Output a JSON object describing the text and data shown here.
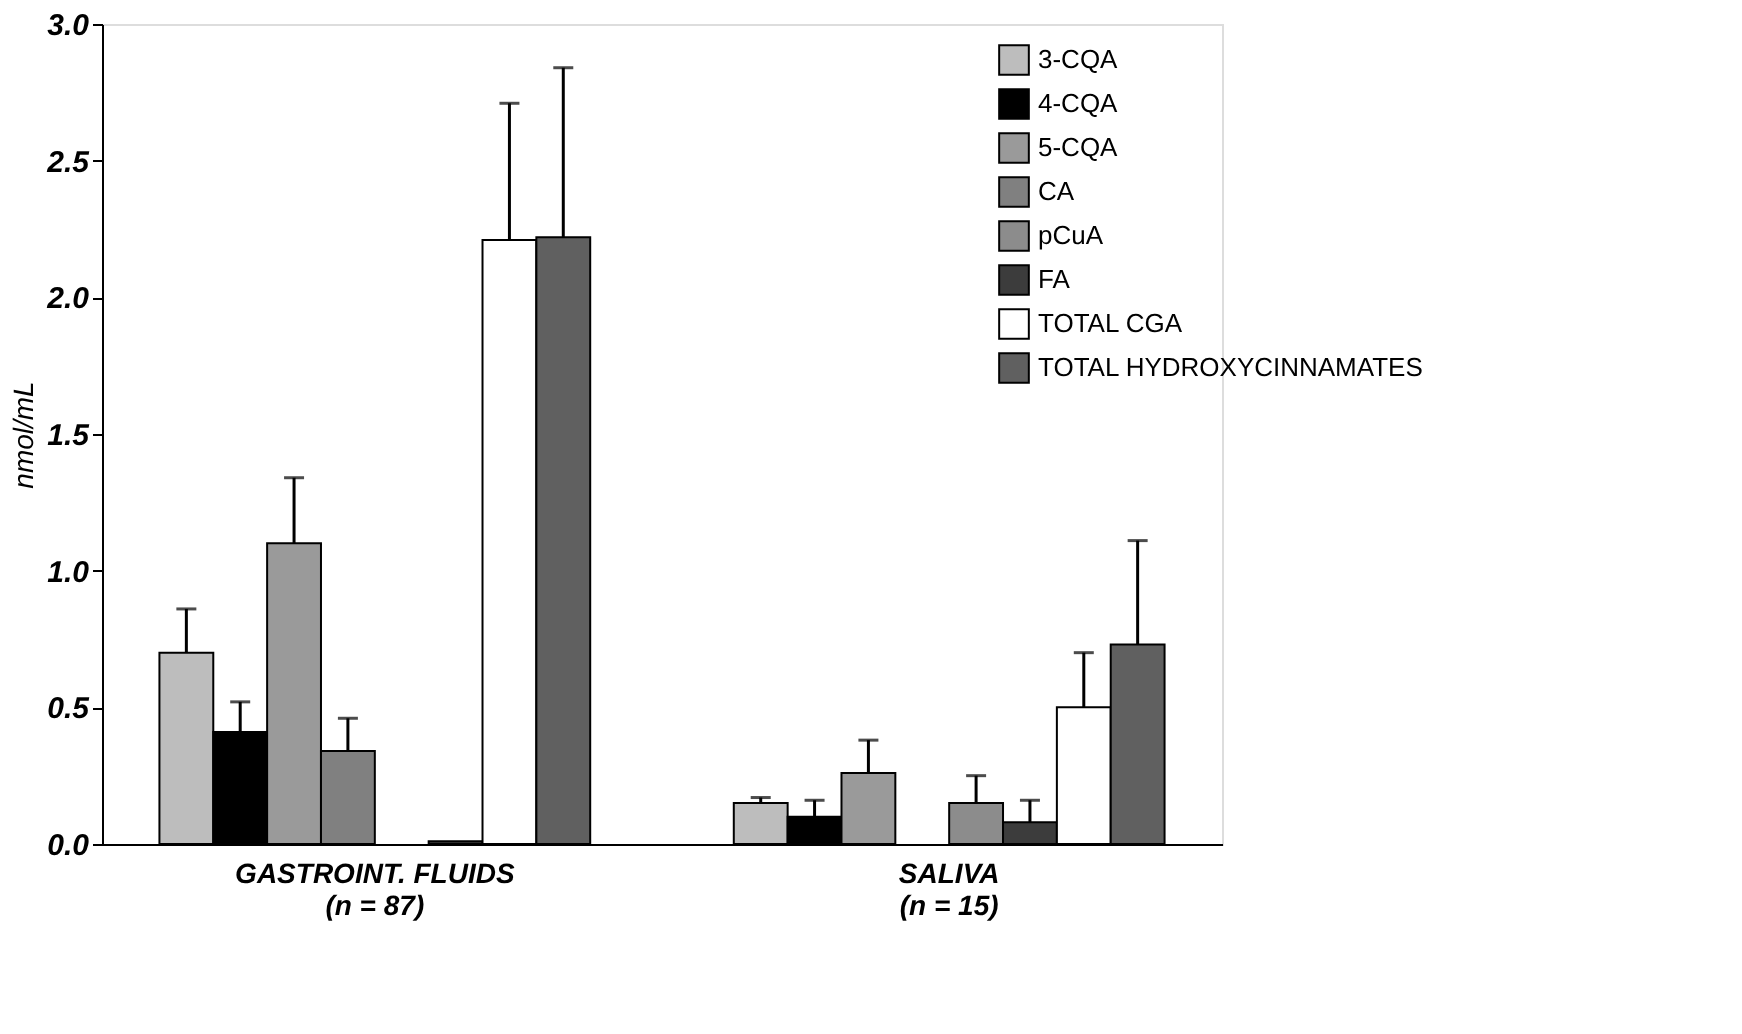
{
  "chart_data": {
    "type": "bar",
    "ylabel": "nmol/mL",
    "categories": [
      "GASTROINT. FLUIDS\n(n = 87)",
      "SALIVA\n(n = 15)"
    ],
    "series": [
      {
        "name": "3-CQA",
        "color": "#bdbdbd",
        "values": [
          0.7,
          0.15
        ],
        "errors": [
          0.16,
          0.02
        ]
      },
      {
        "name": "4-CQA",
        "color": "#000000",
        "values": [
          0.41,
          0.1
        ],
        "errors": [
          0.11,
          0.06
        ]
      },
      {
        "name": "5-CQA",
        "color": "#9a9a9a",
        "values": [
          1.1,
          0.26
        ],
        "errors": [
          0.24,
          0.12
        ]
      },
      {
        "name": "CA",
        "color": "#808080",
        "values": [
          0.34,
          null
        ],
        "errors": [
          0.12,
          null
        ]
      },
      {
        "name": "pCuA",
        "color": "#8c8c8c",
        "values": [
          null,
          0.15
        ],
        "errors": [
          null,
          0.1
        ]
      },
      {
        "name": "FA",
        "color": "#3c3c3c",
        "values": [
          0.01,
          0.08
        ],
        "errors": [
          null,
          0.08
        ]
      },
      {
        "name": "TOTAL CGA",
        "color": "#ffffff",
        "values": [
          2.21,
          0.5
        ],
        "errors": [
          0.5,
          0.2
        ]
      },
      {
        "name": "TOTAL HYDROXYCINNAMATES",
        "color": "#606060",
        "values": [
          2.22,
          0.73
        ],
        "errors": [
          0.62,
          0.38
        ]
      }
    ],
    "ylim": [
      0,
      3.0
    ],
    "yticks": [
      {
        "value": 0,
        "label": "0.0"
      },
      0.5,
      {
        "value": 1,
        "label": "1.0"
      },
      1.5,
      {
        "value": 2,
        "label": "2.0"
      },
      2.5,
      {
        "value": 3,
        "label": "3.0"
      }
    ],
    "grid": false,
    "legend": "top right"
  }
}
